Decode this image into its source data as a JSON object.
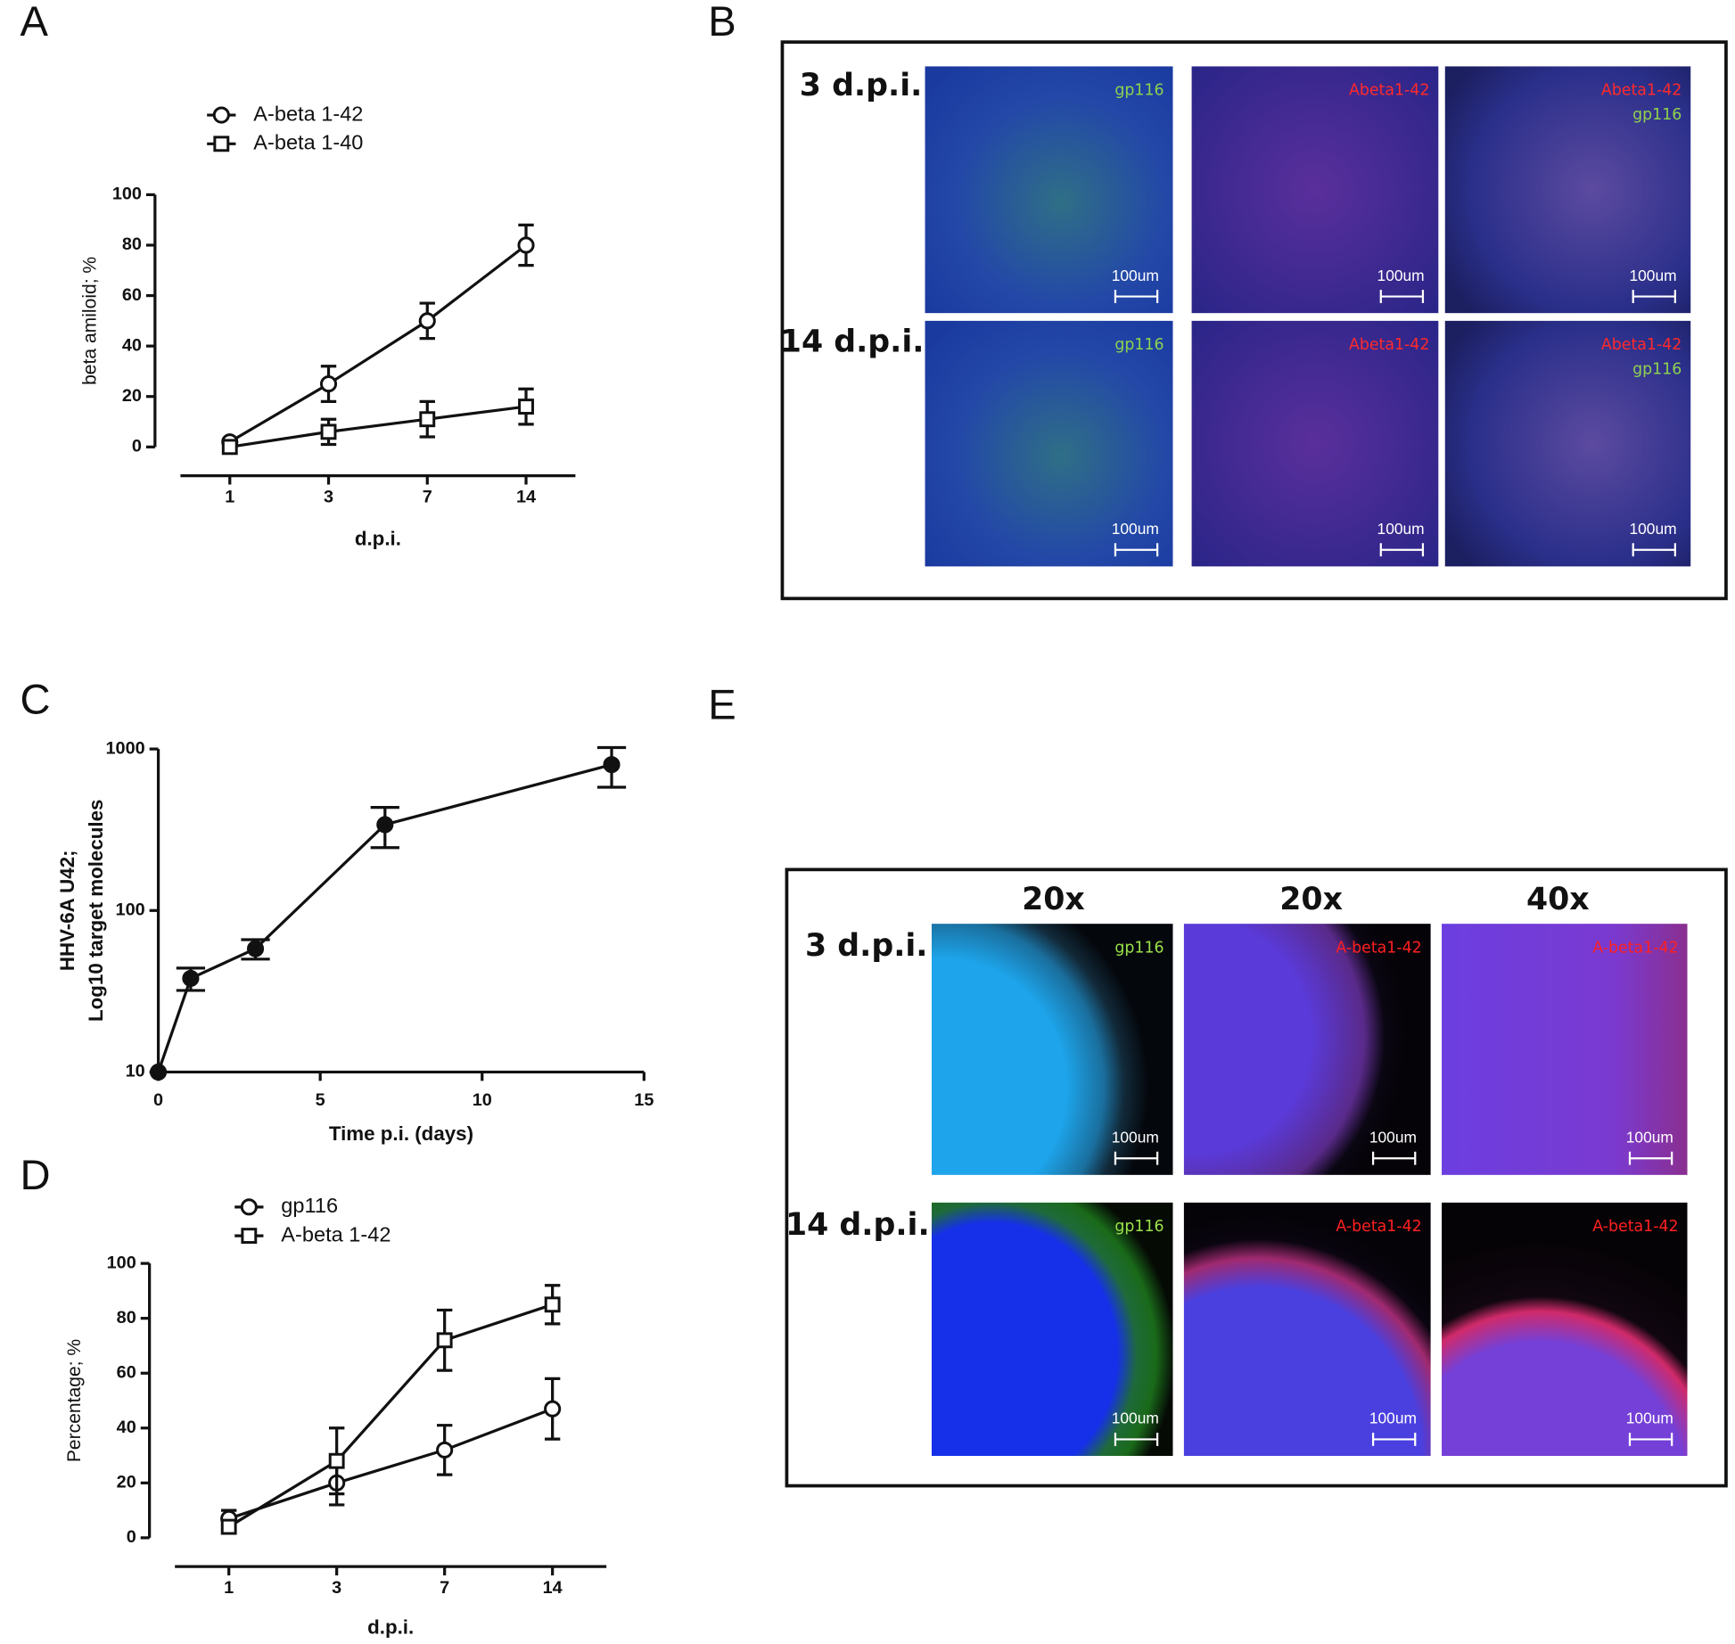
{
  "chart_data": [
    {
      "type": "line",
      "label": "A",
      "categories": [
        "1",
        "3",
        "7",
        "14"
      ],
      "xlabel": "d.p.i.",
      "ylabel": "beta amiloid; %",
      "ylim": [
        0,
        100
      ],
      "yticks": [
        0,
        20,
        40,
        60,
        80,
        100
      ],
      "series": [
        {
          "name": "A-beta 1-42",
          "color": "#111111",
          "marker": "circle",
          "values": [
            2,
            25,
            50,
            80
          ],
          "errors": [
            1,
            7,
            7,
            8
          ]
        },
        {
          "name": "A-beta 1-40",
          "color": "#111111",
          "marker": "square",
          "values": [
            0,
            6,
            11,
            16
          ],
          "errors": [
            1,
            5,
            7,
            7
          ]
        }
      ]
    },
    {
      "type": "line",
      "label": "C",
      "x": [
        0,
        1,
        3,
        7,
        14
      ],
      "xlabel": "Time p.i. (days)",
      "ylabel": [
        "HHV-6A U42;",
        "Log10 target molecules"
      ],
      "xlim": [
        0,
        15
      ],
      "xticks": [
        0,
        5,
        10,
        15
      ],
      "ylim": [
        10,
        1000
      ],
      "yticks": [
        10,
        100,
        1000
      ],
      "log_y": true,
      "series": [
        {
          "color": "#111111",
          "marker": "filled-circle",
          "values": [
            10,
            38,
            58,
            340,
            800
          ],
          "errors": [
            null,
            6,
            8,
            95,
            220
          ]
        }
      ]
    },
    {
      "type": "line",
      "label": "D",
      "categories": [
        "1",
        "3",
        "7",
        "14"
      ],
      "xlabel": "d.p.i.",
      "ylabel": "Percentage; %",
      "ylim": [
        0,
        100
      ],
      "yticks": [
        0,
        20,
        40,
        60,
        80,
        100
      ],
      "series": [
        {
          "name": "gp116",
          "color": "#111111",
          "marker": "circle",
          "values": [
            7,
            20,
            32,
            47
          ],
          "errors": [
            3,
            8,
            9,
            11
          ]
        },
        {
          "name": "A-beta 1-42",
          "color": "#111111",
          "marker": "square",
          "values": [
            4,
            28,
            72,
            85
          ],
          "errors": [
            2,
            12,
            11,
            7
          ]
        }
      ]
    }
  ],
  "figure_panels": [
    {
      "label": "B",
      "rows": [
        {
          "label": "3 d.p.i.",
          "images": [
            {
              "tags": [
                {
                  "text": "gp116",
                  "color": "#8fd14f"
                }
              ],
              "scale": "100um"
            },
            {
              "tags": [
                {
                  "text": "Abeta1-42",
                  "color": "#ff2a2a"
                }
              ],
              "scale": "100um"
            },
            {
              "tags": [
                {
                  "text": "Abeta1-42",
                  "color": "#ff2a2a"
                },
                {
                  "text": "gp116",
                  "color": "#8fd14f"
                }
              ],
              "scale": "100um"
            }
          ]
        },
        {
          "label": "14 d.p.i.",
          "images": [
            {
              "tags": [
                {
                  "text": "gp116",
                  "color": "#8fd14f"
                }
              ],
              "scale": "100um"
            },
            {
              "tags": [
                {
                  "text": "Abeta1-42",
                  "color": "#ff2a2a"
                }
              ],
              "scale": "100um"
            },
            {
              "tags": [
                {
                  "text": "Abeta1-42",
                  "color": "#ff2a2a"
                },
                {
                  "text": "gp116",
                  "color": "#8fd14f"
                }
              ],
              "scale": "100um"
            }
          ]
        }
      ]
    },
    {
      "label": "E",
      "columns": [
        "20x",
        "20x",
        "40x"
      ],
      "rows": [
        {
          "label": "3 d.p.i.",
          "images": [
            {
              "tags": [
                {
                  "text": "gp116",
                  "color": "#9be24a"
                }
              ],
              "scale": "100um"
            },
            {
              "tags": [
                {
                  "text": "A-beta1-42",
                  "color": "#ff2020"
                }
              ],
              "scale": "100um"
            },
            {
              "tags": [
                {
                  "text": "A-beta1-42",
                  "color": "#ff2020"
                }
              ],
              "scale": "100um"
            }
          ]
        },
        {
          "label": "14 d.p.i.",
          "images": [
            {
              "tags": [
                {
                  "text": "gp116",
                  "color": "#9be24a"
                }
              ],
              "scale": "100um"
            },
            {
              "tags": [
                {
                  "text": "A-beta1-42",
                  "color": "#ff2020"
                }
              ],
              "scale": "100um"
            },
            {
              "tags": [
                {
                  "text": "A-beta1-42",
                  "color": "#ff2020"
                }
              ],
              "scale": "100um"
            }
          ]
        }
      ]
    }
  ]
}
